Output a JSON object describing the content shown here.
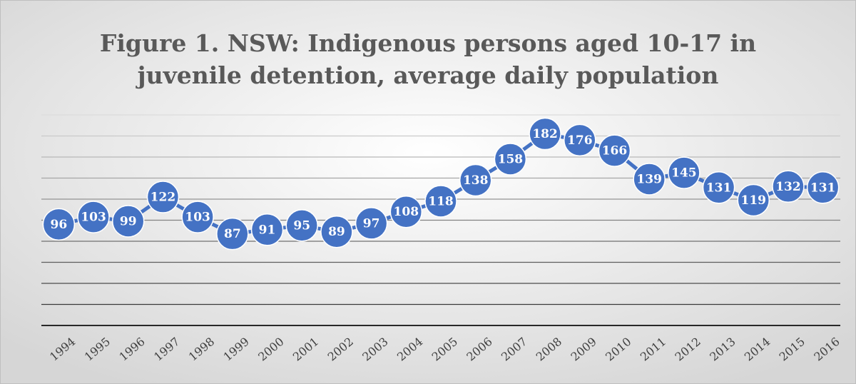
{
  "chart_data": {
    "type": "line",
    "title": [
      "Figure 1. NSW: Indigenous persons aged 10-17 in",
      "juvenile detention, average daily population"
    ],
    "categories": [
      "1994",
      "1995",
      "1996",
      "1997",
      "1998",
      "1999",
      "2000",
      "2001",
      "2002",
      "2003",
      "2004",
      "2005",
      "2006",
      "2007",
      "2008",
      "2009",
      "2010",
      "2011",
      "2012",
      "2013",
      "2014",
      "2015",
      "2016"
    ],
    "values": [
      96,
      103,
      99,
      122,
      103,
      87,
      91,
      95,
      89,
      97,
      108,
      118,
      138,
      158,
      182,
      176,
      166,
      139,
      145,
      131,
      119,
      132,
      131
    ],
    "color": "#4472c4",
    "ylim": [
      0,
      200
    ],
    "yticks": [
      0,
      20,
      40,
      60,
      80,
      100,
      120,
      140,
      160,
      180,
      200
    ],
    "grid": true
  }
}
